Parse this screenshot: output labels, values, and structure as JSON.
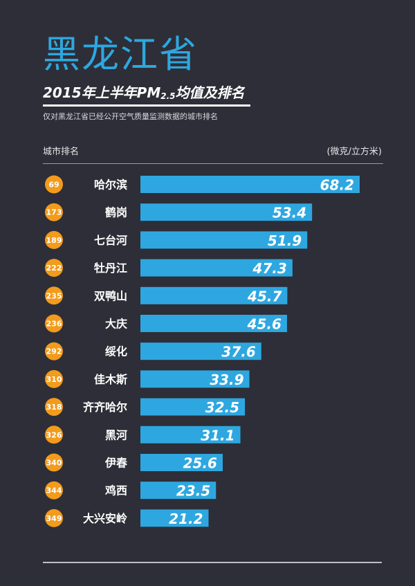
{
  "province": "黑龙江省",
  "title": {
    "year_prefix": "2015年上半年",
    "pm": "PM",
    "sub": "2.5",
    "suffix": "均值及排名"
  },
  "note": "仅对黑龙江省已经公开空气质量监测数据的城市排名",
  "header": {
    "left": "城市排名",
    "unit": "(微克/立方米)"
  },
  "colors": {
    "background": "#2d2e37",
    "bar": "#2ea7e0",
    "rank_badge": "#f29b1c",
    "province_title": "#2ea7e0"
  },
  "chart_data": {
    "type": "bar",
    "orientation": "horizontal",
    "title": "2015年上半年PM2.5均值及排名",
    "unit": "(微克/立方米)",
    "categories": [
      "哈尔滨",
      "鹤岗",
      "七台河",
      "牡丹江",
      "双鸭山",
      "大庆",
      "绥化",
      "佳木斯",
      "齐齐哈尔",
      "黑河",
      "伊春",
      "鸡西",
      "大兴安岭"
    ],
    "ranks": [
      69,
      173,
      189,
      222,
      235,
      236,
      292,
      310,
      318,
      326,
      340,
      344,
      349
    ],
    "values": [
      68.2,
      53.4,
      51.9,
      47.3,
      45.7,
      45.6,
      37.6,
      33.9,
      32.5,
      31.1,
      25.6,
      23.5,
      21.2
    ],
    "value_labels": [
      "68.2",
      "53.4",
      "51.9",
      "47.3",
      "45.7",
      "45.6",
      "37.6",
      "33.9",
      "32.5",
      "31.1",
      "25.6",
      "23.5",
      "21.2"
    ],
    "xlim": [
      0,
      68.2
    ],
    "grid": false,
    "legend": "none"
  }
}
